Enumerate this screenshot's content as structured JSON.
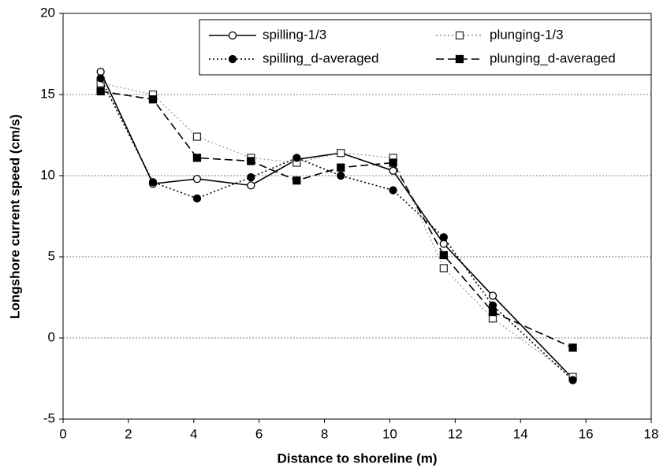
{
  "chart_data": {
    "type": "line",
    "x_label": "Distance to shoreline (m)",
    "y_label": "Longshore current speed (cm/s)",
    "x": [
      1.15,
      2.75,
      4.1,
      5.75,
      7.15,
      8.5,
      10.1,
      11.65,
      13.15,
      15.6
    ],
    "series": [
      {
        "name": "spilling-1/3",
        "color": "#000000",
        "marker": "circle-open",
        "dash": "solid",
        "values": [
          16.4,
          9.5,
          9.8,
          9.4,
          11.0,
          11.4,
          10.3,
          5.8,
          2.6,
          -2.5
        ]
      },
      {
        "name": "plunging-1/3",
        "color": "#888888",
        "marker": "square-open",
        "dash": "dotted",
        "values": [
          15.7,
          15.0,
          12.4,
          11.1,
          10.8,
          11.4,
          11.1,
          4.3,
          1.2,
          -2.4
        ]
      },
      {
        "name": "spilling_d-averaged",
        "color": "#000000",
        "marker": "circle-filled",
        "dash": "dotted",
        "values": [
          16.0,
          9.6,
          8.6,
          9.9,
          11.1,
          10.0,
          9.1,
          6.2,
          2.0,
          -2.6
        ]
      },
      {
        "name": "plunging_d-averaged",
        "color": "#000000",
        "marker": "square-filled",
        "dash": "dashed",
        "values": [
          15.2,
          14.7,
          11.1,
          10.9,
          9.7,
          10.5,
          10.8,
          5.1,
          1.6,
          -0.6
        ]
      }
    ],
    "xlim": [
      0,
      18
    ],
    "xticks": [
      0,
      2,
      4,
      6,
      8,
      10,
      12,
      14,
      16,
      18
    ],
    "ylim": [
      -5,
      20
    ],
    "yticks": [
      -5,
      0,
      5,
      10,
      15,
      20
    ],
    "grid": true,
    "legend": "top-right"
  }
}
